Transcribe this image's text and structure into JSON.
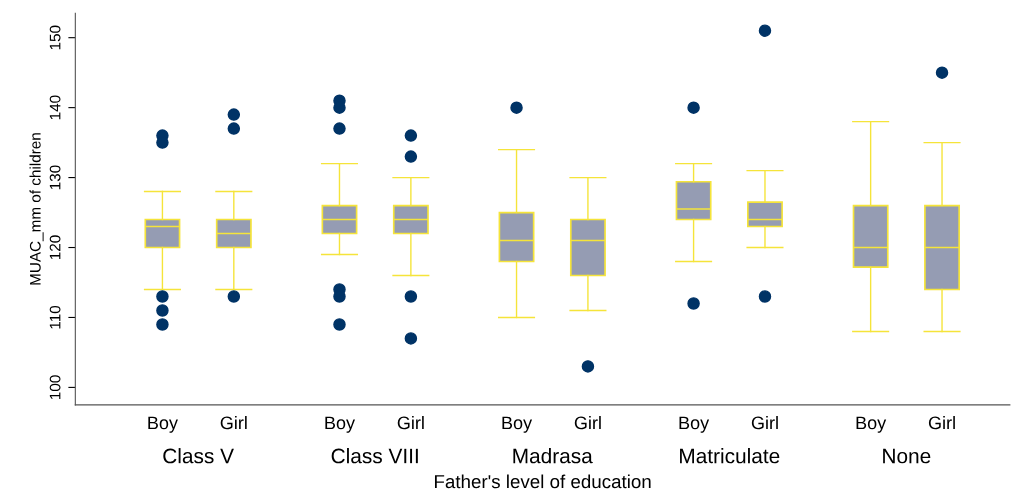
{
  "chart_data": {
    "type": "box",
    "xlabel": "Father's level of education",
    "ylabel": "MUAC_mm of children",
    "categories": [
      "Boy",
      "Girl",
      "Boy",
      "Girl",
      "Boy",
      "Girl",
      "Boy",
      "Girl",
      "Boy",
      "Girl"
    ],
    "annotations": [
      "Class V",
      "Class VIII",
      "Madrasa",
      "Matriculate",
      "None"
    ],
    "ylim": [
      97.5,
      153.5
    ],
    "yticks": [
      100,
      110,
      120,
      130,
      140,
      150
    ],
    "grid": false,
    "marker": "circle",
    "series": [
      {
        "color": "#959cb3",
        "boxes": [
          {
            "low": 114,
            "q1": 120,
            "median": 123,
            "q3": 124,
            "high": 128,
            "outliers": [
              136,
              135,
              113,
              111,
              109
            ]
          },
          {
            "low": 114,
            "q1": 120,
            "median": 122,
            "q3": 124,
            "high": 128,
            "outliers": [
              139,
              137,
              113
            ]
          },
          {
            "low": 119,
            "q1": 122,
            "median": 124,
            "q3": 126,
            "high": 132,
            "outliers": [
              141,
              140,
              137,
              114,
              113,
              109
            ]
          },
          {
            "low": 116,
            "q1": 122,
            "median": 124,
            "q3": 126,
            "high": 130,
            "outliers": [
              136,
              133,
              113,
              107
            ]
          },
          {
            "low": 110,
            "q1": 118,
            "median": 121,
            "q3": 125,
            "high": 134,
            "outliers": [
              140
            ]
          },
          {
            "low": 111,
            "q1": 116,
            "median": 121,
            "q3": 124,
            "high": 130,
            "outliers": [
              103
            ]
          },
          {
            "low": 118,
            "q1": 124,
            "median": 125.5,
            "q3": 129.4,
            "high": 132,
            "outliers": [
              140,
              112
            ]
          },
          {
            "low": 120,
            "q1": 123,
            "median": 124,
            "q3": 126.5,
            "high": 131,
            "outliers": [
              151,
              113
            ]
          },
          {
            "low": 108,
            "q1": 117.2,
            "median": 120,
            "q3": 126,
            "high": 138
          },
          {
            "low": 108,
            "q1": 114,
            "median": 120,
            "q3": 126,
            "high": 135,
            "outliers": [
              145
            ]
          }
        ]
      }
    ]
  }
}
